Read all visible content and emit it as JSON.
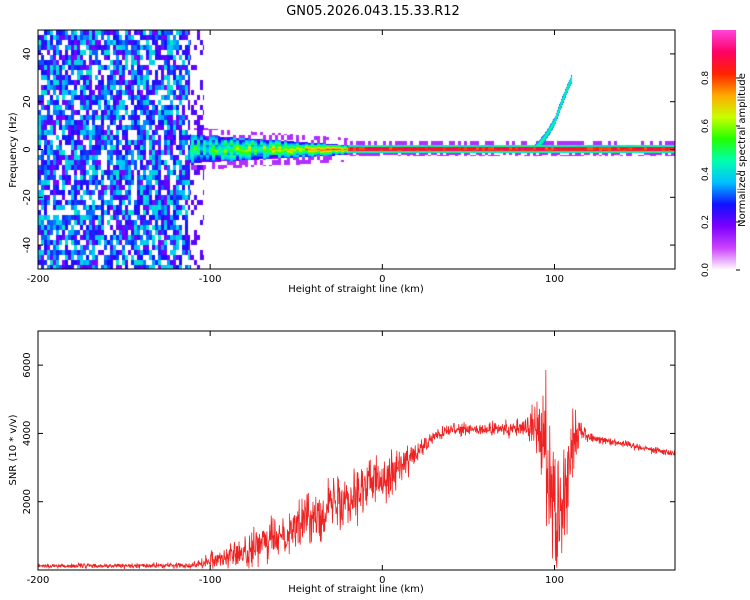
{
  "title": "GN05.2026.043.15.33.R12",
  "chart_data": [
    {
      "type": "heatmap",
      "name": "spectrogram",
      "xlabel": "Height of straight line (km)",
      "ylabel": "Frequency (Hz)",
      "xlim": [
        -200,
        170
      ],
      "ylim": [
        -50,
        50
      ],
      "x_ticks": [
        -200,
        -100,
        0,
        100
      ],
      "y_ticks": [
        -40,
        -20,
        0,
        20,
        40
      ],
      "colorbar": {
        "label": "Normalized spectral amplitude",
        "range": [
          0,
          1
        ],
        "ticks": [
          "0.0",
          "0.2",
          "0.4",
          "0.6",
          "0.8"
        ],
        "colors": [
          "#ffffff",
          "#cc44ff",
          "#7a00ff",
          "#1010ff",
          "#00bfff",
          "#00ffb0",
          "#22ff00",
          "#c8ff00",
          "#ffaa00",
          "#ff2200",
          "#ff0066",
          "#ff44dd"
        ]
      },
      "features": [
        {
          "description": "broadband noise",
          "x_range": [
            -200,
            -112
          ],
          "y_range": [
            -50,
            50
          ],
          "level": 0.35
        },
        {
          "description": "tapering noise",
          "x_range": [
            -112,
            -20
          ],
          "y_range": [
            -6,
            6
          ],
          "level": 0.3
        },
        {
          "description": "main line at 0 Hz",
          "x_range": [
            -20,
            170
          ],
          "frequency": 0.5,
          "level": 0.85
        },
        {
          "description": "chirp",
          "x": [
            88,
            94,
            100,
            104,
            108,
            110
          ],
          "frequency": [
            0,
            5,
            12,
            20,
            27,
            30
          ]
        }
      ]
    },
    {
      "type": "line",
      "name": "snr",
      "xlabel": "Height of straight line (km)",
      "ylabel": "SNR (10 * v/v)",
      "xlim": [
        -200,
        170
      ],
      "ylim": [
        0,
        7000
      ],
      "x_ticks": [
        -200,
        -100,
        0,
        100
      ],
      "y_ticks": [
        2000,
        4000,
        6000
      ],
      "color": "#ee2222",
      "envelope": {
        "x": [
          -200,
          -150,
          -110,
          -100,
          -80,
          -60,
          -40,
          -20,
          0,
          20,
          30,
          40,
          60,
          80,
          85,
          90,
          95,
          100,
          105,
          110,
          115,
          120,
          140,
          170
        ],
        "mean": [
          120,
          120,
          140,
          300,
          500,
          1000,
          1600,
          2200,
          2700,
          3400,
          3900,
          4100,
          4100,
          4150,
          4200,
          4100,
          3600,
          2000,
          1800,
          3700,
          4100,
          3900,
          3700,
          3400
        ],
        "spread": [
          100,
          100,
          120,
          350,
          700,
          900,
          1100,
          1300,
          1100,
          500,
          300,
          250,
          300,
          400,
          700,
          1400,
          2600,
          3800,
          3000,
          1400,
          500,
          200,
          150,
          150
        ]
      }
    }
  ]
}
